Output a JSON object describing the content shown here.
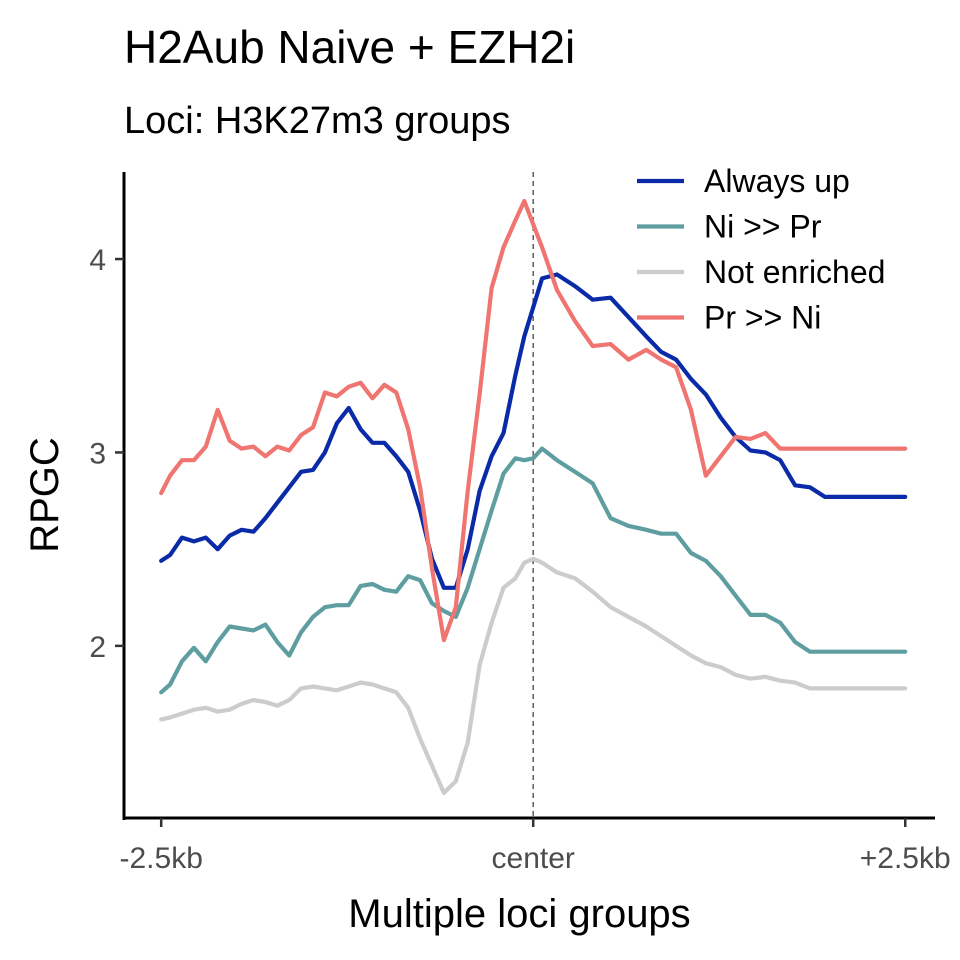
{
  "header": {
    "title": "H2Aub Naive + EZH2i",
    "subtitle": "Loci: H3K27m3 groups"
  },
  "chart_data": {
    "type": "line",
    "title": "H2Aub Naive + EZH2i",
    "subtitle": "Loci: H3K27m3 groups",
    "xlabel": "Multiple loci groups",
    "ylabel": "RPGC",
    "x_ticks": [
      {
        "x": -2.5,
        "label": "-2.5kb"
      },
      {
        "x": 0,
        "label": "center"
      },
      {
        "x": 2.5,
        "label": "+2.5kb"
      }
    ],
    "y_ticks": [
      {
        "y": 2,
        "label": "2"
      },
      {
        "y": 3,
        "label": "3"
      },
      {
        "y": 4,
        "label": "4"
      }
    ],
    "xlim": [
      -2.75,
      2.7
    ],
    "ylim": [
      1.11,
      4.45
    ],
    "grid": false,
    "vline": {
      "x": 0,
      "style": "dashed",
      "color": "#666666"
    },
    "legend": {
      "position": "top-right"
    },
    "x": [
      -2.5,
      -2.44,
      -2.36,
      -2.28,
      -2.2,
      -2.12,
      -2.04,
      -1.96,
      -1.88,
      -1.8,
      -1.72,
      -1.64,
      -1.56,
      -1.48,
      -1.4,
      -1.32,
      -1.24,
      -1.16,
      -1.08,
      -1.0,
      -0.92,
      -0.84,
      -0.76,
      -0.68,
      -0.6,
      -0.52,
      -0.44,
      -0.36,
      -0.28,
      -0.2,
      -0.12,
      -0.06,
      0.0,
      0.06,
      0.16,
      0.28,
      0.4,
      0.52,
      0.64,
      0.76,
      0.86,
      0.96,
      1.06,
      1.16,
      1.26,
      1.36,
      1.46,
      1.56,
      1.66,
      1.76,
      1.86,
      1.96,
      2.06,
      2.16,
      2.26,
      2.36,
      2.44,
      2.5
    ],
    "series": [
      {
        "name": "Always up",
        "color": "#0a2aa8",
        "values": [
          2.44,
          2.47,
          2.56,
          2.54,
          2.56,
          2.5,
          2.57,
          2.6,
          2.59,
          2.66,
          2.74,
          2.82,
          2.9,
          2.91,
          3.0,
          3.15,
          3.23,
          3.12,
          3.05,
          3.05,
          2.98,
          2.9,
          2.7,
          2.45,
          2.3,
          2.3,
          2.5,
          2.8,
          2.98,
          3.1,
          3.4,
          3.6,
          3.75,
          3.9,
          3.92,
          3.86,
          3.79,
          3.8,
          3.7,
          3.6,
          3.52,
          3.48,
          3.38,
          3.3,
          3.18,
          3.08,
          3.01,
          3.0,
          2.96,
          2.83,
          2.82,
          2.77,
          2.77,
          2.77,
          2.77,
          2.77,
          2.77,
          2.77
        ]
      },
      {
        "name": "Ni >> Pr",
        "color": "#5f9ea0",
        "values": [
          1.76,
          1.8,
          1.92,
          1.99,
          1.92,
          2.02,
          2.1,
          2.09,
          2.08,
          2.11,
          2.02,
          1.95,
          2.07,
          2.15,
          2.2,
          2.21,
          2.21,
          2.31,
          2.32,
          2.29,
          2.28,
          2.36,
          2.34,
          2.22,
          2.18,
          2.15,
          2.3,
          2.5,
          2.7,
          2.89,
          2.97,
          2.96,
          2.97,
          3.02,
          2.96,
          2.9,
          2.84,
          2.66,
          2.62,
          2.6,
          2.58,
          2.58,
          2.48,
          2.44,
          2.36,
          2.26,
          2.16,
          2.16,
          2.12,
          2.02,
          1.97,
          1.97,
          1.97,
          1.97,
          1.97,
          1.97,
          1.97,
          1.97
        ]
      },
      {
        "name": "Not enriched",
        "color": "#cccccc",
        "values": [
          1.62,
          1.63,
          1.65,
          1.67,
          1.68,
          1.66,
          1.67,
          1.7,
          1.72,
          1.71,
          1.69,
          1.72,
          1.78,
          1.79,
          1.78,
          1.77,
          1.79,
          1.81,
          1.8,
          1.78,
          1.76,
          1.68,
          1.52,
          1.38,
          1.24,
          1.3,
          1.5,
          1.9,
          2.12,
          2.3,
          2.35,
          2.43,
          2.45,
          2.43,
          2.38,
          2.35,
          2.28,
          2.2,
          2.15,
          2.1,
          2.05,
          2.0,
          1.95,
          1.91,
          1.89,
          1.85,
          1.83,
          1.84,
          1.82,
          1.81,
          1.78,
          1.78,
          1.78,
          1.78,
          1.78,
          1.78,
          1.78,
          1.78
        ]
      },
      {
        "name": "Pr >> Ni",
        "color": "#f07470",
        "values": [
          2.79,
          2.88,
          2.96,
          2.96,
          3.03,
          3.22,
          3.06,
          3.02,
          3.03,
          2.98,
          3.03,
          3.01,
          3.09,
          3.13,
          3.31,
          3.29,
          3.34,
          3.36,
          3.28,
          3.35,
          3.31,
          3.12,
          2.82,
          2.4,
          2.03,
          2.2,
          2.8,
          3.3,
          3.85,
          4.06,
          4.2,
          4.3,
          4.18,
          4.06,
          3.84,
          3.68,
          3.55,
          3.56,
          3.48,
          3.53,
          3.48,
          3.44,
          3.22,
          2.88,
          2.98,
          3.08,
          3.07,
          3.1,
          3.02,
          3.02,
          3.02,
          3.02,
          3.02,
          3.02,
          3.02,
          3.02,
          3.02,
          3.02
        ]
      }
    ]
  }
}
